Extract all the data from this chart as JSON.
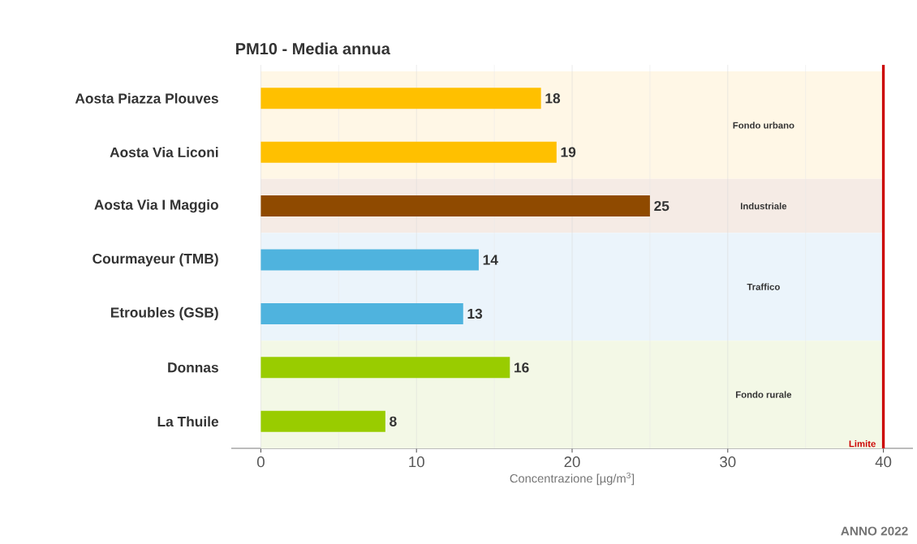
{
  "chart_data": {
    "type": "bar",
    "orientation": "horizontal",
    "title": "PM10 - Media annua",
    "xlabel": "Concentrazione [µg/m$^{3}$]",
    "categories": [
      "Aosta Piazza Plouves",
      "Aosta Via Liconi",
      "Aosta Via I Maggio",
      "Courmayeur (TMB)",
      "Etroubles (GSB)",
      "Donnas",
      "La Thuile"
    ],
    "values": [
      18,
      19,
      25,
      14,
      13,
      16,
      8
    ],
    "colors": [
      "#ffc000",
      "#ffc000",
      "#8f4a00",
      "#4fb3de",
      "#4fb3de",
      "#99cc00",
      "#99cc00"
    ],
    "data_labels": true,
    "xlim": [
      -1.9,
      41.9
    ],
    "xticks": [
      0,
      10,
      20,
      30,
      40
    ],
    "grid": "x",
    "bands": [
      {
        "axis": "y",
        "from": "Aosta Piazza Plouves",
        "to": "Aosta Via Liconi",
        "label": "Fondo urbano",
        "color": "#fff7e6"
      },
      {
        "axis": "y",
        "from": "Aosta Via I Maggio",
        "to": "Aosta Via I Maggio",
        "label": "Industriale",
        "color": "#f5ebe5"
      },
      {
        "axis": "y",
        "from": "Courmayeur (TMB)",
        "to": "Etroubles (GSB)",
        "label": "Traffico",
        "color": "#ebf4fb"
      },
      {
        "axis": "y",
        "from": "Donnas",
        "to": "La Thuile",
        "label": "Fondo rurale",
        "color": "#f3f8e6"
      }
    ],
    "ref_lines": [
      {
        "axis": "x",
        "value": 40,
        "label": "Limite",
        "color": "#cc0000"
      }
    ],
    "annotations": [
      "ANNO 2022"
    ]
  }
}
